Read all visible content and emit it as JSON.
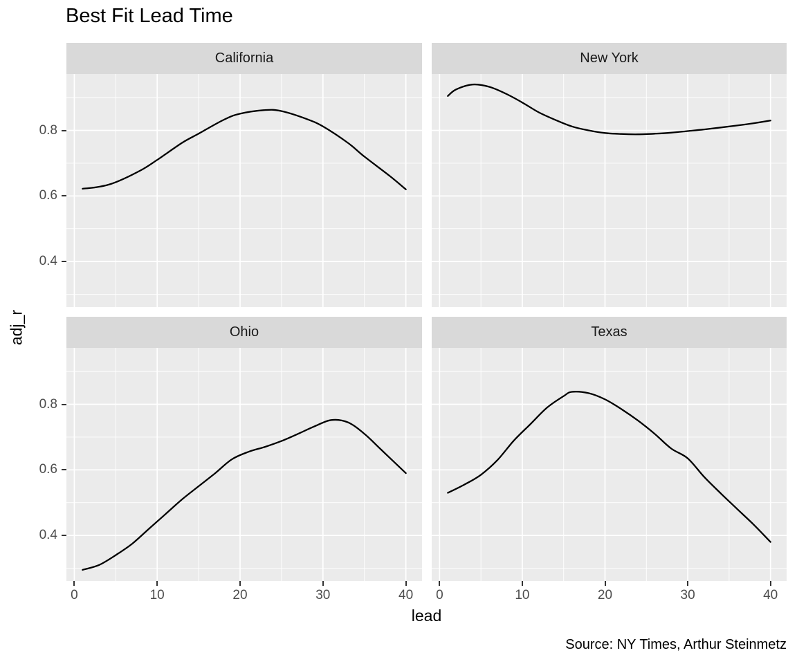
{
  "title": "Best Fit Lead Time",
  "caption": "Source: NY Times, Arthur Steinmetz",
  "axis": {
    "x_label": "lead",
    "y_label": "adj_r",
    "x_ticks": [
      "0",
      "10",
      "20",
      "30",
      "40"
    ],
    "y_ticks": [
      "0.8",
      "0.6",
      "0.4"
    ]
  },
  "colors": {
    "panel_bg": "#EBEBEB",
    "strip_bg": "#D9D9D9",
    "grid": "#FFFFFF",
    "line": "#000000",
    "tick_text": "#4D4D4D",
    "tick_mark": "#333333",
    "strip_text": "#1A1A1A"
  },
  "chart_data": {
    "type": "line",
    "title": "Best Fit Lead Time",
    "xlabel": "lead",
    "ylabel": "adj_r",
    "caption": "Source: NY Times, Arthur Steinmetz",
    "xlim": [
      -0.95,
      41.95
    ],
    "ylim": [
      0.261,
      0.972
    ],
    "x_tick_values": [
      0,
      10,
      20,
      30,
      40
    ],
    "y_tick_values": [
      0.8,
      0.6,
      0.4
    ],
    "x_minor": [
      5,
      15,
      25,
      35
    ],
    "y_minor": [
      0.9,
      0.7,
      0.5,
      0.3
    ],
    "grid": true,
    "legend": "none",
    "facets": [
      {
        "name": "California",
        "row": 0,
        "col": 0,
        "x": [
          1,
          3,
          5,
          8,
          10,
          13,
          15,
          18,
          20,
          23,
          25,
          28,
          30,
          33,
          35,
          38,
          40
        ],
        "y": [
          0.622,
          0.628,
          0.642,
          0.678,
          0.71,
          0.762,
          0.79,
          0.832,
          0.851,
          0.862,
          0.859,
          0.835,
          0.812,
          0.762,
          0.72,
          0.662,
          0.62
        ]
      },
      {
        "name": "New York",
        "row": 0,
        "col": 1,
        "x": [
          1,
          2,
          4,
          6,
          8,
          10,
          12,
          14,
          16,
          18,
          20,
          22,
          24,
          26,
          28,
          30,
          32,
          34,
          36,
          38,
          40
        ],
        "y": [
          0.905,
          0.925,
          0.94,
          0.933,
          0.912,
          0.885,
          0.855,
          0.832,
          0.812,
          0.8,
          0.792,
          0.789,
          0.788,
          0.79,
          0.793,
          0.798,
          0.803,
          0.809,
          0.815,
          0.822,
          0.83
        ]
      },
      {
        "name": "Ohio",
        "row": 1,
        "col": 0,
        "x": [
          1,
          3,
          5,
          7,
          9,
          11,
          13,
          15,
          17,
          19,
          21,
          23,
          25,
          27,
          29,
          31,
          33,
          35,
          37,
          40
        ],
        "y": [
          0.295,
          0.31,
          0.34,
          0.375,
          0.42,
          0.465,
          0.51,
          0.55,
          0.59,
          0.632,
          0.655,
          0.67,
          0.688,
          0.71,
          0.733,
          0.752,
          0.745,
          0.71,
          0.662,
          0.59
        ]
      },
      {
        "name": "Texas",
        "row": 1,
        "col": 1,
        "x": [
          1,
          3,
          5,
          7,
          9,
          11,
          13,
          15,
          16,
          18,
          20,
          22,
          24,
          26,
          28,
          30,
          32,
          34,
          36,
          38,
          40
        ],
        "y": [
          0.53,
          0.555,
          0.585,
          0.63,
          0.69,
          0.74,
          0.79,
          0.825,
          0.838,
          0.834,
          0.815,
          0.785,
          0.75,
          0.71,
          0.665,
          0.635,
          0.578,
          0.528,
          0.48,
          0.432,
          0.38
        ]
      }
    ]
  }
}
